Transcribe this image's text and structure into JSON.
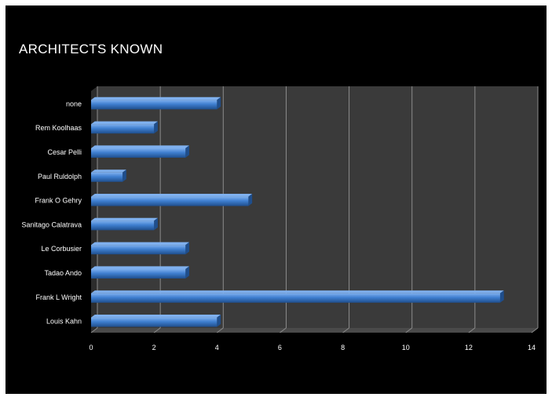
{
  "chart_data": {
    "type": "bar",
    "orientation": "horizontal",
    "title": "ARCHITECTS KNOWN",
    "categories": [
      "Louis Kahn",
      "Frank L Wright",
      "Tadao Ando",
      "Le Corbusier",
      "Sanitago Calatrava",
      "Frank O Gehry",
      "Paul Ruldolph",
      "Cesar Pelli",
      "Rem Koolhaas",
      "none"
    ],
    "values": [
      4,
      13,
      3,
      3,
      2,
      5,
      1,
      3,
      2,
      4
    ],
    "xlim": [
      0,
      14
    ],
    "xticks": [
      "0",
      "2",
      "4",
      "6",
      "8",
      "10",
      "12",
      "14"
    ],
    "grid": true,
    "legend": false,
    "colors": {
      "bar": "#3f7fd0",
      "bar_light": "#7fb0ee",
      "bar_dark": "#1f4e8c",
      "plot_bg": "#3a3a3a",
      "grid": "#8c8c8c",
      "background": "#000000"
    }
  }
}
